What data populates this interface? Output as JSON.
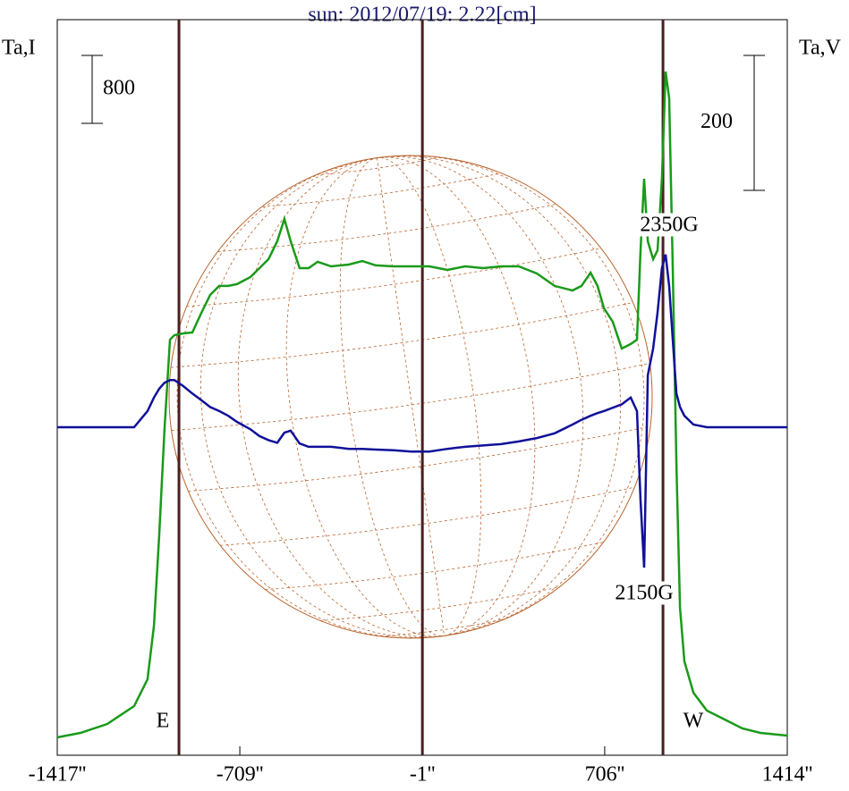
{
  "chart_data": {
    "type": "line",
    "title": "sun: 2012/07/19: 2.22[cm]",
    "ylabel": "Ta,I",
    "y2label": "Ta,V",
    "x": [
      -1417,
      -1327,
      -1223,
      -1119,
      -1067,
      -1042,
      -1022,
      -1001,
      -980,
      -963,
      -928,
      -893,
      -858,
      -824,
      -789,
      -754,
      -720,
      -668,
      -633,
      -598,
      -564,
      -536,
      -512,
      -477,
      -442,
      -407,
      -355,
      -286,
      -234,
      -182,
      -113,
      -43,
      26,
      96,
      165,
      234,
      304,
      373,
      443,
      512,
      581,
      616,
      651,
      678,
      703,
      737,
      772,
      807,
      831,
      845,
      859,
      873,
      894,
      911,
      928,
      942,
      956,
      970,
      984,
      998,
      1015,
      1050,
      1102,
      1171,
      1240,
      1310,
      1414
    ],
    "series": [
      {
        "name": "I",
        "color": "#1a9a1a",
        "axis": "y",
        "values": [
          0,
          53,
          158,
          369,
          684,
          1316,
          2368,
          3631,
          4683,
          4736,
          4757,
          4767,
          4999,
          5209,
          5315,
          5315,
          5336,
          5420,
          5525,
          5630,
          5841,
          6104,
          5841,
          5525,
          5525,
          5599,
          5546,
          5567,
          5609,
          5557,
          5546,
          5546,
          5546,
          5504,
          5546,
          5525,
          5546,
          5546,
          5462,
          5315,
          5262,
          5315,
          5472,
          5315,
          5052,
          4894,
          4578,
          4631,
          4683,
          5735,
          6577,
          5841,
          5630,
          5735,
          6577,
          7840,
          7524,
          5525,
          3210,
          1526,
          895,
          527,
          316,
          211,
          106,
          53,
          22
        ]
      },
      {
        "name": "V",
        "color": "#10109a",
        "axis": "y2",
        "values": [
          0,
          0,
          0,
          0,
          24,
          44,
          57,
          66,
          70,
          70,
          61,
          50,
          40,
          30,
          24,
          17,
          8,
          -3,
          -13,
          -19,
          -23,
          -8,
          -5,
          -24,
          -29,
          -29,
          -29,
          -32,
          -32,
          -33,
          -34,
          -36,
          -36,
          -32,
          -29,
          -27,
          -25,
          -21,
          -16,
          -9,
          4,
          11,
          17,
          21,
          24,
          29,
          34,
          44,
          24,
          -109,
          -208,
          77,
          117,
          170,
          236,
          256,
          209,
          130,
          50,
          30,
          17,
          4,
          0,
          0,
          0,
          0,
          0
        ]
      }
    ],
    "xlim": [
      -1417,
      1414
    ],
    "xticks": [
      {
        "value": -1417,
        "label": "-1417''"
      },
      {
        "value": -709,
        "label": "-709''"
      },
      {
        "value": -1,
        "label": "-1''"
      },
      {
        "value": 706,
        "label": "706''"
      },
      {
        "value": 1414,
        "label": "1414''"
      }
    ],
    "ylim": [
      -210,
      8450
    ],
    "y2lim": [
      -486,
      604
    ],
    "scale_bars": [
      {
        "axis": "y",
        "value": 800,
        "label": "800"
      },
      {
        "axis": "y2",
        "value": 200,
        "label": "200"
      }
    ],
    "vlines": [
      -945,
      -1,
      932
    ],
    "vline_color": "#4a1e1e",
    "annotations": [
      "2350G",
      "2150G",
      "E",
      "W"
    ]
  }
}
